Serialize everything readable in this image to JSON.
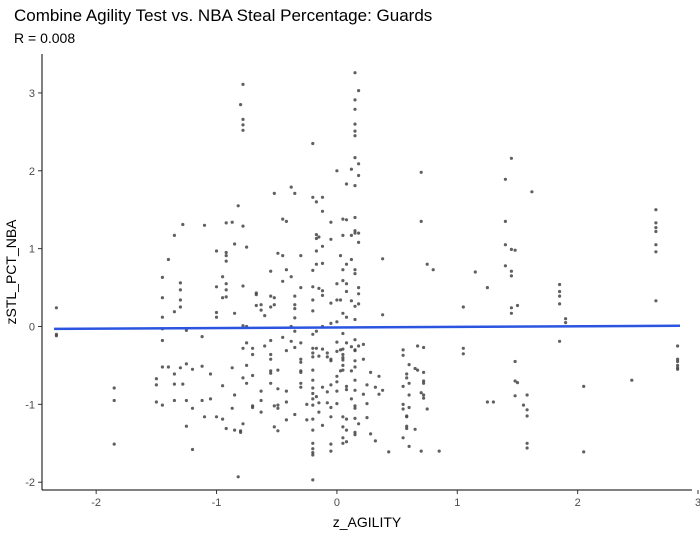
{
  "chart_data": {
    "type": "scatter",
    "title": "Combine Agility Test vs. NBA Steal Percentage: Guards",
    "subtitle": "R = 0.008",
    "xlabel": "z_AGILITY",
    "ylabel": "zSTL_PCT_NBA",
    "xlim": [
      -2.45,
      2.95
    ],
    "ylim": [
      -2.1,
      3.5
    ],
    "x_ticks": [
      -2,
      -1,
      0,
      1,
      2,
      3
    ],
    "y_ticks": [
      -2,
      -1,
      0,
      1,
      2,
      3
    ],
    "grid": false,
    "point_color": "#444444",
    "trend_color": "#2b55e0",
    "trend_line": {
      "x": [
        -2.35,
        2.85
      ],
      "y": [
        -0.03,
        0.01
      ]
    },
    "points": [
      [
        -2.33,
        0.24
      ],
      [
        -2.33,
        -0.1
      ],
      [
        -2.33,
        -0.12
      ],
      [
        -1.85,
        -0.79
      ],
      [
        -1.85,
        -0.95
      ],
      [
        -1.85,
        -1.51
      ],
      [
        -1.5,
        -0.67
      ],
      [
        -1.5,
        -0.75
      ],
      [
        -1.5,
        -0.97
      ],
      [
        -1.45,
        0.63
      ],
      [
        -1.45,
        0.37
      ],
      [
        -1.45,
        0.12
      ],
      [
        -1.45,
        -0.03
      ],
      [
        -1.45,
        -0.18
      ],
      [
        -1.45,
        -0.52
      ],
      [
        -1.45,
        -1.01
      ],
      [
        -1.4,
        0.86
      ],
      [
        -1.4,
        -0.52
      ],
      [
        -1.35,
        1.17
      ],
      [
        -1.35,
        0.19
      ],
      [
        -1.35,
        -0.61
      ],
      [
        -1.35,
        -0.74
      ],
      [
        -1.35,
        -0.95
      ],
      [
        -1.3,
        0.56
      ],
      [
        -1.3,
        0.47
      ],
      [
        -1.3,
        0.34
      ],
      [
        -1.3,
        0.25
      ],
      [
        -1.3,
        -0.53
      ],
      [
        -1.28,
        1.31
      ],
      [
        -1.28,
        -0.74
      ],
      [
        -1.25,
        -0.05
      ],
      [
        -1.25,
        -0.48
      ],
      [
        -1.25,
        -0.95
      ],
      [
        -1.25,
        -1.28
      ],
      [
        -1.2,
        -0.55
      ],
      [
        -1.2,
        -1.05
      ],
      [
        -1.2,
        -1.58
      ],
      [
        -1.12,
        -0.13
      ],
      [
        -1.12,
        -0.51
      ],
      [
        -1.12,
        -0.95
      ],
      [
        -1.1,
        1.3
      ],
      [
        -1.1,
        -1.16
      ],
      [
        -1.05,
        -0.61
      ],
      [
        -1.05,
        -0.93
      ],
      [
        -1.0,
        0.51
      ],
      [
        -1.0,
        0.18
      ],
      [
        -1.0,
        0.12
      ],
      [
        -1.0,
        0.97
      ],
      [
        -1.0,
        -1.16
      ],
      [
        -0.95,
        0.64
      ],
      [
        -0.95,
        0.37
      ],
      [
        -0.95,
        -0.76
      ],
      [
        -0.95,
        -1.19
      ],
      [
        -0.92,
        0.95
      ],
      [
        -0.92,
        0.91
      ],
      [
        -0.92,
        0.84
      ],
      [
        -0.92,
        0.55
      ],
      [
        -0.92,
        0.47
      ],
      [
        -0.92,
        0.38
      ],
      [
        -0.92,
        1.33
      ],
      [
        -0.92,
        -1.31
      ],
      [
        -0.87,
        1.34
      ],
      [
        -0.87,
        -0.53
      ],
      [
        -0.87,
        -1.05
      ],
      [
        -0.85,
        -0.88
      ],
      [
        -0.85,
        -1.33
      ],
      [
        -0.85,
        1.06
      ],
      [
        -0.85,
        0.17
      ],
      [
        -0.82,
        1.55
      ],
      [
        -0.82,
        -1.93
      ],
      [
        -0.8,
        2.85
      ],
      [
        -0.8,
        -1.34
      ],
      [
        -0.8,
        -1.36
      ],
      [
        -0.78,
        3.11
      ],
      [
        -0.78,
        2.66
      ],
      [
        -0.78,
        2.59
      ],
      [
        -0.78,
        2.52
      ],
      [
        -0.78,
        1.29
      ],
      [
        -0.78,
        0.52
      ],
      [
        -0.78,
        0.01
      ],
      [
        -0.78,
        -0.28
      ],
      [
        -0.78,
        -0.66
      ],
      [
        -0.78,
        -1.25
      ],
      [
        -0.75,
        1.02
      ],
      [
        -0.75,
        0.0
      ],
      [
        -0.75,
        -0.21
      ],
      [
        -0.75,
        -0.5
      ],
      [
        -0.75,
        -0.73
      ],
      [
        -0.7,
        -0.28
      ],
      [
        -0.7,
        -0.36
      ],
      [
        -0.7,
        -0.63
      ],
      [
        -0.7,
        -1.02
      ],
      [
        -0.7,
        -1.04
      ],
      [
        -0.67,
        0.43
      ],
      [
        -0.67,
        0.41
      ],
      [
        -0.67,
        0.27
      ],
      [
        -0.63,
        0.28
      ],
      [
        -0.63,
        0.21
      ],
      [
        -0.63,
        -0.83
      ],
      [
        -0.63,
        -0.95
      ],
      [
        -0.63,
        -1.1
      ],
      [
        -0.6,
        0.14
      ],
      [
        -0.6,
        -0.25
      ],
      [
        -0.55,
        0.71
      ],
      [
        -0.55,
        0.39
      ],
      [
        -0.55,
        0.25
      ],
      [
        -0.55,
        -0.18
      ],
      [
        -0.55,
        -0.36
      ],
      [
        -0.55,
        -0.42
      ],
      [
        -0.55,
        -0.57
      ],
      [
        -0.55,
        -0.6
      ],
      [
        -0.55,
        -0.73
      ],
      [
        -0.52,
        0.28
      ],
      [
        -0.52,
        0.37
      ],
      [
        -0.52,
        -1.02
      ],
      [
        -0.52,
        1.71
      ],
      [
        -0.52,
        -1.29
      ],
      [
        -0.49,
        0.94
      ],
      [
        -0.49,
        -0.56
      ],
      [
        -0.49,
        -0.8
      ],
      [
        -0.49,
        -1.01
      ],
      [
        -0.49,
        -1.05
      ],
      [
        -0.49,
        -1.34
      ],
      [
        -0.45,
        1.38
      ],
      [
        -0.45,
        0.91
      ],
      [
        -0.45,
        0.58
      ],
      [
        -0.45,
        -0.14
      ],
      [
        -0.42,
        1.35
      ],
      [
        -0.42,
        0.73
      ],
      [
        -0.42,
        -0.31
      ],
      [
        -0.42,
        -0.83
      ],
      [
        -0.42,
        -0.97
      ],
      [
        -0.42,
        -1.2
      ],
      [
        -0.38,
        1.79
      ],
      [
        -0.38,
        0.64
      ],
      [
        -0.38,
        0.0
      ],
      [
        -0.38,
        -0.19
      ],
      [
        -0.35,
        1.71
      ],
      [
        -0.35,
        0.39
      ],
      [
        -0.35,
        0.28
      ],
      [
        -0.35,
        0.23
      ],
      [
        -0.35,
        0.11
      ],
      [
        -0.35,
        -0.06
      ],
      [
        -0.35,
        -0.27
      ],
      [
        -0.35,
        -1.13
      ],
      [
        -0.3,
        0.91
      ],
      [
        -0.3,
        0.5
      ],
      [
        -0.3,
        -0.21
      ],
      [
        -0.3,
        -0.42
      ],
      [
        -0.3,
        -0.46
      ],
      [
        -0.3,
        -0.57
      ],
      [
        -0.3,
        -0.59
      ],
      [
        -0.3,
        -0.73
      ],
      [
        -0.3,
        -0.78
      ],
      [
        -0.25,
        -1.0
      ],
      [
        -0.25,
        -1.2
      ],
      [
        -0.2,
        2.35
      ],
      [
        -0.2,
        1.66
      ],
      [
        -0.2,
        0.72
      ],
      [
        -0.2,
        0.51
      ],
      [
        -0.2,
        0.34
      ],
      [
        -0.2,
        0.2
      ],
      [
        -0.2,
        -0.1
      ],
      [
        -0.2,
        -0.28
      ],
      [
        -0.2,
        -0.34
      ],
      [
        -0.2,
        -0.39
      ],
      [
        -0.2,
        -0.56
      ],
      [
        -0.2,
        -0.69
      ],
      [
        -0.2,
        -0.79
      ],
      [
        -0.2,
        -0.86
      ],
      [
        -0.2,
        -0.93
      ],
      [
        -0.2,
        -1.01
      ],
      [
        -0.2,
        -1.19
      ],
      [
        -0.2,
        -1.33
      ],
      [
        -0.2,
        -1.5
      ],
      [
        -0.2,
        -1.57
      ],
      [
        -0.2,
        -1.62
      ],
      [
        -0.2,
        -1.65
      ],
      [
        -0.2,
        -1.97
      ],
      [
        -0.17,
        1.6
      ],
      [
        -0.17,
        1.18
      ],
      [
        -0.17,
        1.13
      ],
      [
        -0.17,
        0.97
      ],
      [
        -0.17,
        0.8
      ],
      [
        -0.17,
        -0.06
      ],
      [
        -0.17,
        -0.28
      ],
      [
        -0.17,
        -0.9
      ],
      [
        -0.15,
        1.15
      ],
      [
        -0.15,
        0.49
      ],
      [
        -0.15,
        -0.38
      ],
      [
        -0.15,
        -0.98
      ],
      [
        -0.15,
        -1.1
      ],
      [
        -0.12,
        1.66
      ],
      [
        -0.12,
        1.48
      ],
      [
        -0.12,
        1.03
      ],
      [
        -0.12,
        0.81
      ],
      [
        -0.12,
        0.46
      ],
      [
        -0.12,
        0.4
      ],
      [
        -0.12,
        0.0
      ],
      [
        -0.12,
        -0.29
      ],
      [
        -0.12,
        -0.78
      ],
      [
        -0.12,
        -1.27
      ],
      [
        -0.08,
        -0.34
      ],
      [
        -0.08,
        -0.39
      ],
      [
        -0.08,
        -0.84
      ],
      [
        -0.08,
        -0.98
      ],
      [
        -0.05,
        0.3
      ],
      [
        -0.05,
        0.04
      ],
      [
        -0.05,
        -0.42
      ],
      [
        -0.05,
        -0.44
      ],
      [
        -0.05,
        -0.75
      ],
      [
        -0.05,
        -1.04
      ],
      [
        -0.05,
        -1.16
      ],
      [
        -0.05,
        -1.51
      ],
      [
        -0.05,
        -1.6
      ],
      [
        -0.05,
        1.34
      ],
      [
        -0.05,
        1.12
      ],
      [
        0.0,
        2.0
      ],
      [
        0.0,
        0.55
      ],
      [
        0.0,
        0.34
      ],
      [
        0.0,
        0.06
      ],
      [
        0.0,
        -0.2
      ],
      [
        0.0,
        -0.32
      ],
      [
        0.0,
        -0.64
      ],
      [
        0.0,
        -0.71
      ],
      [
        0.0,
        -0.83
      ],
      [
        0.0,
        -0.99
      ],
      [
        0.03,
        0.91
      ],
      [
        0.03,
        0.34
      ],
      [
        0.03,
        -0.3
      ],
      [
        0.03,
        -0.57
      ],
      [
        0.05,
        1.38
      ],
      [
        0.05,
        1.17
      ],
      [
        0.05,
        0.73
      ],
      [
        0.05,
        0.59
      ],
      [
        0.05,
        0.17
      ],
      [
        0.05,
        -0.09
      ],
      [
        0.05,
        -0.29
      ],
      [
        0.05,
        -0.36
      ],
      [
        0.05,
        -0.4
      ],
      [
        0.05,
        -0.43
      ],
      [
        0.05,
        -0.5
      ],
      [
        0.05,
        -0.56
      ],
      [
        0.05,
        -1.16
      ],
      [
        0.05,
        -1.29
      ],
      [
        0.05,
        -1.43
      ],
      [
        0.05,
        -1.5
      ],
      [
        0.08,
        1.83
      ],
      [
        0.08,
        1.37
      ],
      [
        0.08,
        0.8
      ],
      [
        0.08,
        0.55
      ],
      [
        0.08,
        0.45
      ],
      [
        0.08,
        0.12
      ],
      [
        0.08,
        -0.21
      ],
      [
        0.08,
        -0.77
      ],
      [
        0.08,
        -0.81
      ],
      [
        0.08,
        -1.19
      ],
      [
        0.08,
        -1.33
      ],
      [
        0.08,
        -1.48
      ],
      [
        0.12,
        2.02
      ],
      [
        0.12,
        1.17
      ],
      [
        0.12,
        0.86
      ],
      [
        0.12,
        0.33
      ],
      [
        0.12,
        -0.26
      ],
      [
        0.12,
        -0.57
      ],
      [
        0.12,
        -0.93
      ],
      [
        0.15,
        3.26
      ],
      [
        0.15,
        2.91
      ],
      [
        0.15,
        2.79
      ],
      [
        0.15,
        2.6
      ],
      [
        0.15,
        2.51
      ],
      [
        0.15,
        2.45
      ],
      [
        0.15,
        2.17
      ],
      [
        0.15,
        1.81
      ],
      [
        0.15,
        1.4
      ],
      [
        0.15,
        1.23
      ],
      [
        0.15,
        1.2
      ],
      [
        0.15,
        0.73
      ],
      [
        0.15,
        0.68
      ],
      [
        0.15,
        0.26
      ],
      [
        0.15,
        0.09
      ],
      [
        0.15,
        -0.17
      ],
      [
        0.15,
        -0.3
      ],
      [
        0.15,
        -0.31
      ],
      [
        0.15,
        -0.44
      ],
      [
        0.15,
        -0.52
      ],
      [
        0.15,
        -0.69
      ],
      [
        0.15,
        -0.82
      ],
      [
        0.15,
        -1.02
      ],
      [
        0.15,
        -1.05
      ],
      [
        0.15,
        -1.18
      ],
      [
        0.15,
        -1.36
      ],
      [
        0.15,
        -1.39
      ],
      [
        0.18,
        3.03
      ],
      [
        0.18,
        2.09
      ],
      [
        0.18,
        1.94
      ],
      [
        0.18,
        1.2
      ],
      [
        0.18,
        1.08
      ],
      [
        0.18,
        0.5
      ],
      [
        0.18,
        0.42
      ],
      [
        0.18,
        0.29
      ],
      [
        0.18,
        -0.25
      ],
      [
        0.18,
        -1.25
      ],
      [
        0.22,
        -0.23
      ],
      [
        0.22,
        -0.42
      ],
      [
        0.22,
        -0.87
      ],
      [
        0.25,
        -0.75
      ],
      [
        0.25,
        -0.99
      ],
      [
        0.25,
        -1.17
      ],
      [
        0.28,
        -1.38
      ],
      [
        0.28,
        -0.59
      ],
      [
        0.32,
        -1.47
      ],
      [
        0.32,
        -0.78
      ],
      [
        0.35,
        -0.64
      ],
      [
        0.35,
        -0.87
      ],
      [
        0.38,
        -0.82
      ],
      [
        0.38,
        0.15
      ],
      [
        0.38,
        0.87
      ],
      [
        0.43,
        -1.61
      ],
      [
        0.55,
        -0.77
      ],
      [
        0.55,
        -1.0
      ],
      [
        0.55,
        -0.3
      ],
      [
        0.55,
        -0.37
      ],
      [
        0.55,
        -1.43
      ],
      [
        0.55,
        -1.06
      ],
      [
        0.58,
        -0.61
      ],
      [
        0.58,
        -0.66
      ],
      [
        0.58,
        -1.15
      ],
      [
        0.58,
        -1.16
      ],
      [
        0.58,
        -1.28
      ],
      [
        0.58,
        -1.31
      ],
      [
        0.6,
        -0.49
      ],
      [
        0.6,
        -0.73
      ],
      [
        0.6,
        -0.88
      ],
      [
        0.6,
        -1.04
      ],
      [
        0.6,
        -1.54
      ],
      [
        0.65,
        -0.54
      ],
      [
        0.65,
        -1.32
      ],
      [
        0.67,
        -0.25
      ],
      [
        0.67,
        -0.56
      ],
      [
        0.7,
        1.35
      ],
      [
        0.7,
        1.98
      ],
      [
        0.7,
        -1.6
      ],
      [
        0.7,
        -0.85
      ],
      [
        0.72,
        -0.27
      ],
      [
        0.72,
        -0.59
      ],
      [
        0.72,
        -0.7
      ],
      [
        0.72,
        -0.73
      ],
      [
        0.72,
        -0.88
      ],
      [
        0.72,
        -0.92
      ],
      [
        0.75,
        0.8
      ],
      [
        0.75,
        -1.06
      ],
      [
        0.8,
        0.73
      ],
      [
        0.85,
        -1.6
      ],
      [
        1.05,
        -0.28
      ],
      [
        1.05,
        -0.35
      ],
      [
        1.05,
        0.25
      ],
      [
        1.15,
        0.7
      ],
      [
        1.25,
        0.5
      ],
      [
        1.25,
        -0.97
      ],
      [
        1.3,
        -0.97
      ],
      [
        1.4,
        1.35
      ],
      [
        1.4,
        1.05
      ],
      [
        1.4,
        1.89
      ],
      [
        1.4,
        0.78
      ],
      [
        1.45,
        2.16
      ],
      [
        1.45,
        0.99
      ],
      [
        1.45,
        0.71
      ],
      [
        1.45,
        0.65
      ],
      [
        1.45,
        0.24
      ],
      [
        1.45,
        0.17
      ],
      [
        1.48,
        0.98
      ],
      [
        1.48,
        -0.45
      ],
      [
        1.48,
        -0.7
      ],
      [
        1.48,
        -0.89
      ],
      [
        1.5,
        0.27
      ],
      [
        1.5,
        -0.72
      ],
      [
        1.55,
        -1.01
      ],
      [
        1.58,
        -0.88
      ],
      [
        1.58,
        -1.07
      ],
      [
        1.58,
        -1.15
      ],
      [
        1.58,
        -1.5
      ],
      [
        1.58,
        -1.56
      ],
      [
        1.62,
        1.73
      ],
      [
        1.85,
        0.54
      ],
      [
        1.85,
        0.45
      ],
      [
        1.85,
        0.39
      ],
      [
        1.85,
        0.29
      ],
      [
        1.85,
        -0.19
      ],
      [
        1.9,
        0.1
      ],
      [
        1.9,
        0.05
      ],
      [
        2.05,
        -0.77
      ],
      [
        2.05,
        -1.61
      ],
      [
        2.45,
        -0.69
      ],
      [
        2.65,
        1.5
      ],
      [
        2.65,
        1.33
      ],
      [
        2.65,
        1.27
      ],
      [
        2.65,
        1.22
      ],
      [
        2.65,
        1.05
      ],
      [
        2.65,
        0.96
      ],
      [
        2.65,
        0.33
      ],
      [
        2.83,
        -0.25
      ],
      [
        2.83,
        -0.42
      ],
      [
        2.83,
        -0.45
      ],
      [
        2.83,
        -0.5
      ],
      [
        2.83,
        -0.53
      ],
      [
        2.83,
        -0.55
      ]
    ]
  }
}
